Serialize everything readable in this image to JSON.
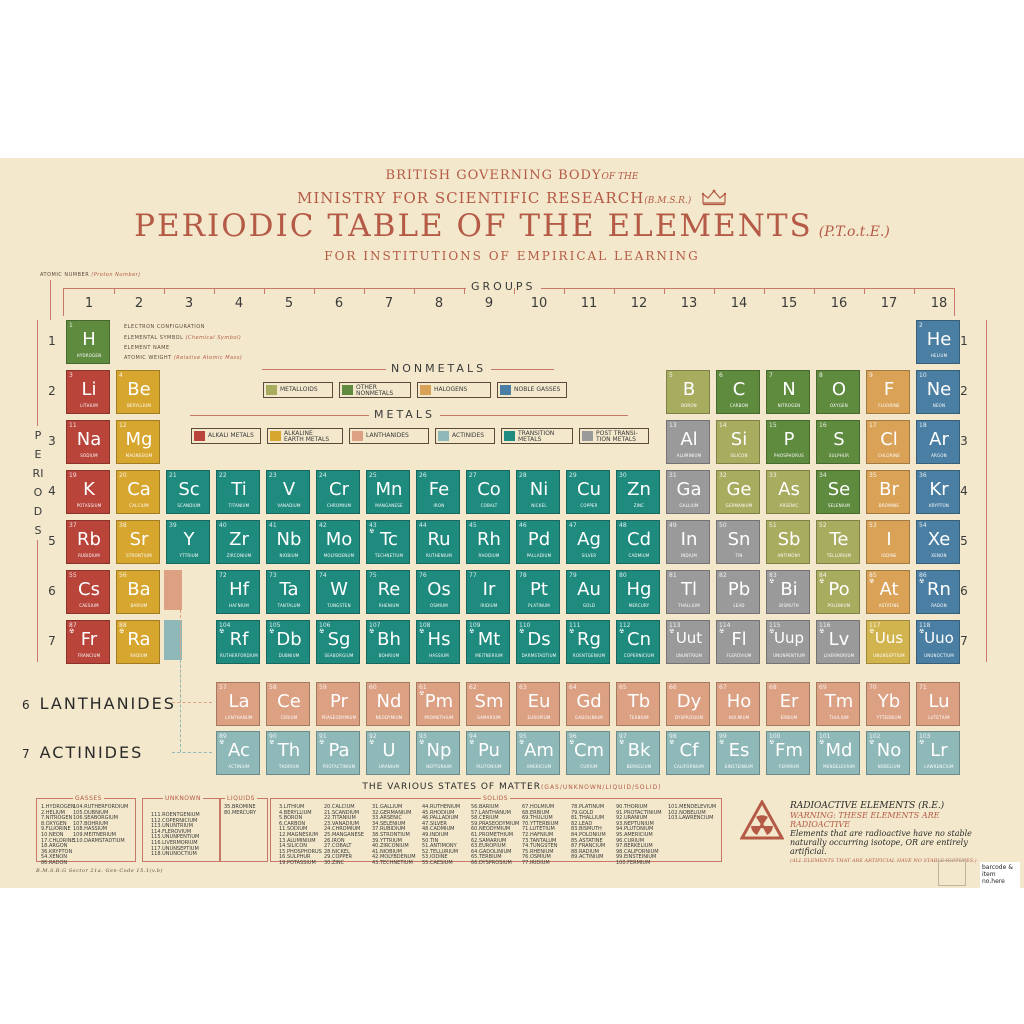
{
  "header": {
    "line1": "BRITISH GOVERNING BODY",
    "line1_small": "OF THE",
    "line2": "MINISTRY FOR SCIENTIFIC RESEARCH",
    "line2_small": "(B.M.S.R.)",
    "title": "PERIODIC TABLE OF THE ELEMENTS",
    "title_small": "(P.T.o.t.E.)",
    "subtitle": "FOR INSTITUTIONS OF EMPIRICAL LEARNING"
  },
  "labels": {
    "atomic_number": "ATOMIC NUMBER",
    "atomic_number_note": "(Proton Number)",
    "electron_configuration": "ELECTRON CONFIGURATION",
    "elemental_symbol": "ELEMENTAL SYMBOL",
    "elemental_symbol_note": "(Chemical Symbol)",
    "element_name": "ELEMENT NAME",
    "atomic_weight": "ATOMIC WEIGHT",
    "atomic_weight_note": "(Relative Atomic Mass)",
    "groups": "GROUPS",
    "periods": "PERIODS",
    "nonmetals": "NONMETALS",
    "metals": "METALS",
    "lanthanides_num": "6",
    "lanthanides": "LANTHANIDES",
    "actinides_num": "7",
    "actinides": "ACTINIDES",
    "states": "THE VARIOUS STATES OF MATTER",
    "states_small": "(GAS/UNKNOWN/LIQUID/SOLID)",
    "footer_code": "B.M.S.R.G Sector 21a. Gen-Code 15.1(v.b)",
    "barcode": "barcode &\nitem no.here"
  },
  "groups": [
    "1",
    "2",
    "3",
    "4",
    "5",
    "6",
    "7",
    "8",
    "9",
    "10",
    "11",
    "12",
    "13",
    "14",
    "15",
    "16",
    "17",
    "18"
  ],
  "periods": [
    "1",
    "2",
    "3",
    "4",
    "5",
    "6",
    "7"
  ],
  "colors": {
    "alkali": "#b8443a",
    "alkaline": "#d7a62f",
    "transition": "#1f8a7e",
    "post": "#9a9a9a",
    "metalloid": "#a8ac5f",
    "nonmetal": "#5f8b3f",
    "halogen": "#d9a257",
    "noble": "#4a7fa3",
    "lanthanide": "#dca083",
    "actinide": "#8fb8b8",
    "unknown": "#d2b44e",
    "accent": "#b45a46"
  },
  "legend_nonmetals": [
    {
      "label": "METALLOIDS",
      "color": "#a8ac5f"
    },
    {
      "label": "OTHER\nNONMETALS",
      "color": "#5f8b3f"
    },
    {
      "label": "HALOGENS",
      "color": "#d9a257"
    },
    {
      "label": "NOBLE GASSES",
      "color": "#4a7fa3"
    }
  ],
  "legend_metals": [
    {
      "label": "ALKALI METALS",
      "color": "#b8443a"
    },
    {
      "label": "ALKALINE\nEARTH METALS",
      "color": "#d7a62f"
    },
    {
      "label": "LANTHANIDES",
      "color": "#dca083"
    },
    {
      "label": "ACTINIDES",
      "color": "#8fb8b8"
    },
    {
      "label": "TRANSITION\nMETALS",
      "color": "#1f8a7e"
    },
    {
      "label": "POST TRANSI-\nTION METALS",
      "color": "#9a9a9a"
    }
  ],
  "elements": [
    {
      "n": 1,
      "s": "H",
      "name": "HYDROGEN",
      "g": 1,
      "p": 1,
      "c": "nonmetal"
    },
    {
      "n": 2,
      "s": "He",
      "name": "HELIUM",
      "g": 18,
      "p": 1,
      "c": "noble"
    },
    {
      "n": 3,
      "s": "Li",
      "name": "LITHIUM",
      "g": 1,
      "p": 2,
      "c": "alkali"
    },
    {
      "n": 4,
      "s": "Be",
      "name": "BERYLLIUM",
      "g": 2,
      "p": 2,
      "c": "alkaline"
    },
    {
      "n": 5,
      "s": "B",
      "name": "BORON",
      "g": 13,
      "p": 2,
      "c": "metalloid"
    },
    {
      "n": 6,
      "s": "C",
      "name": "CARBON",
      "g": 14,
      "p": 2,
      "c": "nonmetal"
    },
    {
      "n": 7,
      "s": "N",
      "name": "NITROGEN",
      "g": 15,
      "p": 2,
      "c": "nonmetal"
    },
    {
      "n": 8,
      "s": "O",
      "name": "OXYGEN",
      "g": 16,
      "p": 2,
      "c": "nonmetal"
    },
    {
      "n": 9,
      "s": "F",
      "name": "FLUORINE",
      "g": 17,
      "p": 2,
      "c": "halogen"
    },
    {
      "n": 10,
      "s": "Ne",
      "name": "NEON",
      "g": 18,
      "p": 2,
      "c": "noble"
    },
    {
      "n": 11,
      "s": "Na",
      "name": "SODIUM",
      "g": 1,
      "p": 3,
      "c": "alkali"
    },
    {
      "n": 12,
      "s": "Mg",
      "name": "MAGNESIUM",
      "g": 2,
      "p": 3,
      "c": "alkaline"
    },
    {
      "n": 13,
      "s": "Al",
      "name": "ALUMINIUM",
      "g": 13,
      "p": 3,
      "c": "post"
    },
    {
      "n": 14,
      "s": "Si",
      "name": "SILICON",
      "g": 14,
      "p": 3,
      "c": "metalloid"
    },
    {
      "n": 15,
      "s": "P",
      "name": "PHOSPHORUS",
      "g": 15,
      "p": 3,
      "c": "nonmetal"
    },
    {
      "n": 16,
      "s": "S",
      "name": "SULPHUR",
      "g": 16,
      "p": 3,
      "c": "nonmetal"
    },
    {
      "n": 17,
      "s": "Cl",
      "name": "CHLORINE",
      "g": 17,
      "p": 3,
      "c": "halogen"
    },
    {
      "n": 18,
      "s": "Ar",
      "name": "ARGON",
      "g": 18,
      "p": 3,
      "c": "noble"
    },
    {
      "n": 19,
      "s": "K",
      "name": "POTASSIUM",
      "g": 1,
      "p": 4,
      "c": "alkali"
    },
    {
      "n": 20,
      "s": "Ca",
      "name": "CALCIUM",
      "g": 2,
      "p": 4,
      "c": "alkaline"
    },
    {
      "n": 21,
      "s": "Sc",
      "name": "SCANDIUM",
      "g": 3,
      "p": 4,
      "c": "transition"
    },
    {
      "n": 22,
      "s": "Ti",
      "name": "TITANIUM",
      "g": 4,
      "p": 4,
      "c": "transition"
    },
    {
      "n": 23,
      "s": "V",
      "name": "VANADIUM",
      "g": 5,
      "p": 4,
      "c": "transition"
    },
    {
      "n": 24,
      "s": "Cr",
      "name": "CHROMIUM",
      "g": 6,
      "p": 4,
      "c": "transition"
    },
    {
      "n": 25,
      "s": "Mn",
      "name": "MANGANESE",
      "g": 7,
      "p": 4,
      "c": "transition"
    },
    {
      "n": 26,
      "s": "Fe",
      "name": "IRON",
      "g": 8,
      "p": 4,
      "c": "transition"
    },
    {
      "n": 27,
      "s": "Co",
      "name": "COBALT",
      "g": 9,
      "p": 4,
      "c": "transition"
    },
    {
      "n": 28,
      "s": "Ni",
      "name": "NICKEL",
      "g": 10,
      "p": 4,
      "c": "transition"
    },
    {
      "n": 29,
      "s": "Cu",
      "name": "COPPER",
      "g": 11,
      "p": 4,
      "c": "transition"
    },
    {
      "n": 30,
      "s": "Zn",
      "name": "ZINC",
      "g": 12,
      "p": 4,
      "c": "transition"
    },
    {
      "n": 31,
      "s": "Ga",
      "name": "GALLIUM",
      "g": 13,
      "p": 4,
      "c": "post"
    },
    {
      "n": 32,
      "s": "Ge",
      "name": "GERMANIUM",
      "g": 14,
      "p": 4,
      "c": "metalloid"
    },
    {
      "n": 33,
      "s": "As",
      "name": "ARSENIC",
      "g": 15,
      "p": 4,
      "c": "metalloid"
    },
    {
      "n": 34,
      "s": "Se",
      "name": "SELENIUM",
      "g": 16,
      "p": 4,
      "c": "nonmetal"
    },
    {
      "n": 35,
      "s": "Br",
      "name": "BROMINE",
      "g": 17,
      "p": 4,
      "c": "halogen"
    },
    {
      "n": 36,
      "s": "Kr",
      "name": "KRYPTON",
      "g": 18,
      "p": 4,
      "c": "noble"
    },
    {
      "n": 37,
      "s": "Rb",
      "name": "RUBIDIUM",
      "g": 1,
      "p": 5,
      "c": "alkali"
    },
    {
      "n": 38,
      "s": "Sr",
      "name": "STRONTIUM",
      "g": 2,
      "p": 5,
      "c": "alkaline"
    },
    {
      "n": 39,
      "s": "Y",
      "name": "YTTRIUM",
      "g": 3,
      "p": 5,
      "c": "transition"
    },
    {
      "n": 40,
      "s": "Zr",
      "name": "ZIRCONIUM",
      "g": 4,
      "p": 5,
      "c": "transition"
    },
    {
      "n": 41,
      "s": "Nb",
      "name": "NIOBIUM",
      "g": 5,
      "p": 5,
      "c": "transition"
    },
    {
      "n": 42,
      "s": "Mo",
      "name": "MOLYBDENUM",
      "g": 6,
      "p": 5,
      "c": "transition"
    },
    {
      "n": 43,
      "s": "Tc",
      "name": "TECHNETIUM",
      "g": 7,
      "p": 5,
      "c": "transition",
      "r": true
    },
    {
      "n": 44,
      "s": "Ru",
      "name": "RUTHENIUM",
      "g": 8,
      "p": 5,
      "c": "transition"
    },
    {
      "n": 45,
      "s": "Rh",
      "name": "RHODIUM",
      "g": 9,
      "p": 5,
      "c": "transition"
    },
    {
      "n": 46,
      "s": "Pd",
      "name": "PALLADIUM",
      "g": 10,
      "p": 5,
      "c": "transition"
    },
    {
      "n": 47,
      "s": "Ag",
      "name": "SILVER",
      "g": 11,
      "p": 5,
      "c": "transition"
    },
    {
      "n": 48,
      "s": "Cd",
      "name": "CADMIUM",
      "g": 12,
      "p": 5,
      "c": "transition"
    },
    {
      "n": 49,
      "s": "In",
      "name": "INDIUM",
      "g": 13,
      "p": 5,
      "c": "post"
    },
    {
      "n": 50,
      "s": "Sn",
      "name": "TIN",
      "g": 14,
      "p": 5,
      "c": "post"
    },
    {
      "n": 51,
      "s": "Sb",
      "name": "ANTIMONY",
      "g": 15,
      "p": 5,
      "c": "metalloid"
    },
    {
      "n": 52,
      "s": "Te",
      "name": "TELLURIUM",
      "g": 16,
      "p": 5,
      "c": "metalloid"
    },
    {
      "n": 53,
      "s": "I",
      "name": "IODINE",
      "g": 17,
      "p": 5,
      "c": "halogen"
    },
    {
      "n": 54,
      "s": "Xe",
      "name": "XENON",
      "g": 18,
      "p": 5,
      "c": "noble"
    },
    {
      "n": 55,
      "s": "Cs",
      "name": "CAESIUM",
      "g": 1,
      "p": 6,
      "c": "alkali"
    },
    {
      "n": 56,
      "s": "Ba",
      "name": "BARIUM",
      "g": 2,
      "p": 6,
      "c": "alkaline"
    },
    {
      "n": 72,
      "s": "Hf",
      "name": "HAFNIUM",
      "g": 4,
      "p": 6,
      "c": "transition"
    },
    {
      "n": 73,
      "s": "Ta",
      "name": "TANTALUM",
      "g": 5,
      "p": 6,
      "c": "transition"
    },
    {
      "n": 74,
      "s": "W",
      "name": "TUNGSTEN",
      "g": 6,
      "p": 6,
      "c": "transition"
    },
    {
      "n": 75,
      "s": "Re",
      "name": "RHENIUM",
      "g": 7,
      "p": 6,
      "c": "transition"
    },
    {
      "n": 76,
      "s": "Os",
      "name": "OSMIUM",
      "g": 8,
      "p": 6,
      "c": "transition"
    },
    {
      "n": 77,
      "s": "Ir",
      "name": "IRIDIUM",
      "g": 9,
      "p": 6,
      "c": "transition"
    },
    {
      "n": 78,
      "s": "Pt",
      "name": "PLATINUM",
      "g": 10,
      "p": 6,
      "c": "transition"
    },
    {
      "n": 79,
      "s": "Au",
      "name": "GOLD",
      "g": 11,
      "p": 6,
      "c": "transition"
    },
    {
      "n": 80,
      "s": "Hg",
      "name": "MERCURY",
      "g": 12,
      "p": 6,
      "c": "transition"
    },
    {
      "n": 81,
      "s": "Tl",
      "name": "THALLIUM",
      "g": 13,
      "p": 6,
      "c": "post"
    },
    {
      "n": 82,
      "s": "Pb",
      "name": "LEAD",
      "g": 14,
      "p": 6,
      "c": "post"
    },
    {
      "n": 83,
      "s": "Bi",
      "name": "BISMUTH",
      "g": 15,
      "p": 6,
      "c": "post",
      "r": true
    },
    {
      "n": 84,
      "s": "Po",
      "name": "POLONIUM",
      "g": 16,
      "p": 6,
      "c": "metalloid",
      "r": true
    },
    {
      "n": 85,
      "s": "At",
      "name": "ASTATINE",
      "g": 17,
      "p": 6,
      "c": "halogen",
      "r": true
    },
    {
      "n": 86,
      "s": "Rn",
      "name": "RADON",
      "g": 18,
      "p": 6,
      "c": "noble",
      "r": true
    },
    {
      "n": 87,
      "s": "Fr",
      "name": "FRANCIUM",
      "g": 1,
      "p": 7,
      "c": "alkali",
      "r": true
    },
    {
      "n": 88,
      "s": "Ra",
      "name": "RADIUM",
      "g": 2,
      "p": 7,
      "c": "alkaline",
      "r": true
    },
    {
      "n": 104,
      "s": "Rf",
      "name": "RUTHERFORDIUM",
      "g": 4,
      "p": 7,
      "c": "transition",
      "r": true
    },
    {
      "n": 105,
      "s": "Db",
      "name": "DUBNIUM",
      "g": 5,
      "p": 7,
      "c": "transition",
      "r": true
    },
    {
      "n": 106,
      "s": "Sg",
      "name": "SEABORGIUM",
      "g": 6,
      "p": 7,
      "c": "transition",
      "r": true
    },
    {
      "n": 107,
      "s": "Bh",
      "name": "BOHRIUM",
      "g": 7,
      "p": 7,
      "c": "transition",
      "r": true
    },
    {
      "n": 108,
      "s": "Hs",
      "name": "HASSIUM",
      "g": 8,
      "p": 7,
      "c": "transition",
      "r": true
    },
    {
      "n": 109,
      "s": "Mt",
      "name": "MEITNERIUM",
      "g": 9,
      "p": 7,
      "c": "transition",
      "r": true
    },
    {
      "n": 110,
      "s": "Ds",
      "name": "DARMSTADTIUM",
      "g": 10,
      "p": 7,
      "c": "transition",
      "r": true
    },
    {
      "n": 111,
      "s": "Rg",
      "name": "ROENTGENIUM",
      "g": 11,
      "p": 7,
      "c": "transition",
      "r": true
    },
    {
      "n": 112,
      "s": "Cn",
      "name": "COPERNICIUM",
      "g": 12,
      "p": 7,
      "c": "transition",
      "r": true
    },
    {
      "n": 113,
      "s": "Uut",
      "name": "UNUNTRIUM",
      "g": 13,
      "p": 7,
      "c": "post",
      "r": true
    },
    {
      "n": 114,
      "s": "Fl",
      "name": "FLEROVIUM",
      "g": 14,
      "p": 7,
      "c": "post",
      "r": true
    },
    {
      "n": 115,
      "s": "Uup",
      "name": "UNUNPENTIUM",
      "g": 15,
      "p": 7,
      "c": "post",
      "r": true
    },
    {
      "n": 116,
      "s": "Lv",
      "name": "LIVERMORIUM",
      "g": 16,
      "p": 7,
      "c": "post",
      "r": true
    },
    {
      "n": 117,
      "s": "Uus",
      "name": "UNUNSEPTIUM",
      "g": 17,
      "p": 7,
      "c": "unknown",
      "r": true
    },
    {
      "n": 118,
      "s": "Uuo",
      "name": "UNUNOCTIUM",
      "g": 18,
      "p": 7,
      "c": "noble",
      "r": true
    },
    {
      "n": 57,
      "s": "La",
      "name": "LANTHANUM",
      "g": 4,
      "p": 9,
      "c": "lanthanide"
    },
    {
      "n": 58,
      "s": "Ce",
      "name": "CERIUM",
      "g": 5,
      "p": 9,
      "c": "lanthanide"
    },
    {
      "n": 59,
      "s": "Pr",
      "name": "PRASEODYMIUM",
      "g": 6,
      "p": 9,
      "c": "lanthanide"
    },
    {
      "n": 60,
      "s": "Nd",
      "name": "NEODYMIUM",
      "g": 7,
      "p": 9,
      "c": "lanthanide"
    },
    {
      "n": 61,
      "s": "Pm",
      "name": "PROMETHIUM",
      "g": 8,
      "p": 9,
      "c": "lanthanide",
      "r": true
    },
    {
      "n": 62,
      "s": "Sm",
      "name": "SAMARIUM",
      "g": 9,
      "p": 9,
      "c": "lanthanide"
    },
    {
      "n": 63,
      "s": "Eu",
      "name": "EUROPIUM",
      "g": 10,
      "p": 9,
      "c": "lanthanide"
    },
    {
      "n": 64,
      "s": "Gd",
      "name": "GADOLINIUM",
      "g": 11,
      "p": 9,
      "c": "lanthanide"
    },
    {
      "n": 65,
      "s": "Tb",
      "name": "TERBIUM",
      "g": 12,
      "p": 9,
      "c": "lanthanide"
    },
    {
      "n": 66,
      "s": "Dy",
      "name": "DYSPROSIUM",
      "g": 13,
      "p": 9,
      "c": "lanthanide"
    },
    {
      "n": 67,
      "s": "Ho",
      "name": "HOLMIUM",
      "g": 14,
      "p": 9,
      "c": "lanthanide"
    },
    {
      "n": 68,
      "s": "Er",
      "name": "ERBIUM",
      "g": 15,
      "p": 9,
      "c": "lanthanide"
    },
    {
      "n": 69,
      "s": "Tm",
      "name": "THULIUM",
      "g": 16,
      "p": 9,
      "c": "lanthanide"
    },
    {
      "n": 70,
      "s": "Yb",
      "name": "YTTERBIUM",
      "g": 17,
      "p": 9,
      "c": "lanthanide"
    },
    {
      "n": 71,
      "s": "Lu",
      "name": "LUTETIUM",
      "g": 18,
      "p": 9,
      "c": "lanthanide"
    },
    {
      "n": 89,
      "s": "Ac",
      "name": "ACTINIUM",
      "g": 4,
      "p": 10,
      "c": "actinide",
      "r": true
    },
    {
      "n": 90,
      "s": "Th",
      "name": "THORIUM",
      "g": 5,
      "p": 10,
      "c": "actinide",
      "r": true
    },
    {
      "n": 91,
      "s": "Pa",
      "name": "PROTACTINIUM",
      "g": 6,
      "p": 10,
      "c": "actinide",
      "r": true
    },
    {
      "n": 92,
      "s": "U",
      "name": "URANIUM",
      "g": 7,
      "p": 10,
      "c": "actinide",
      "r": true
    },
    {
      "n": 93,
      "s": "Np",
      "name": "NEPTUNIUM",
      "g": 8,
      "p": 10,
      "c": "actinide",
      "r": true
    },
    {
      "n": 94,
      "s": "Pu",
      "name": "PLUTONIUM",
      "g": 9,
      "p": 10,
      "c": "actinide",
      "r": true
    },
    {
      "n": 95,
      "s": "Am",
      "name": "AMERICIUM",
      "g": 10,
      "p": 10,
      "c": "actinide",
      "r": true
    },
    {
      "n": 96,
      "s": "Cm",
      "name": "CURIUM",
      "g": 11,
      "p": 10,
      "c": "actinide",
      "r": true
    },
    {
      "n": 97,
      "s": "Bk",
      "name": "BERKELIUM",
      "g": 12,
      "p": 10,
      "c": "actinide",
      "r": true
    },
    {
      "n": 98,
      "s": "Cf",
      "name": "CALIFORNIUM",
      "g": 13,
      "p": 10,
      "c": "actinide",
      "r": true
    },
    {
      "n": 99,
      "s": "Es",
      "name": "EINSTEINIUM",
      "g": 14,
      "p": 10,
      "c": "actinide",
      "r": true
    },
    {
      "n": 100,
      "s": "Fm",
      "name": "FERMIUM",
      "g": 15,
      "p": 10,
      "c": "actinide",
      "r": true
    },
    {
      "n": 101,
      "s": "Md",
      "name": "MENDELEVIUM",
      "g": 16,
      "p": 10,
      "c": "actinide",
      "r": true
    },
    {
      "n": 102,
      "s": "No",
      "name": "NOBELIUM",
      "g": 17,
      "p": 10,
      "c": "actinide",
      "r": true
    },
    {
      "n": 103,
      "s": "Lr",
      "name": "LAWRENCIUM",
      "g": 18,
      "p": 10,
      "c": "actinide",
      "r": true
    }
  ],
  "states": {
    "gasses_title": "GASSES",
    "gasses_col1": "1.HYDROGEN\n2.HELIUM\n7.NITROGEN\n8.OXYGEN\n9.FLUORINE\n10.NEON\n17.CHLORINE\n18.ARGON\n36.KRYPTON\n54.XENON\n86.RADON",
    "gasses_col2": "104.RUTHERFORDIUM\n105.DUBNIUM\n106.SEABORGIUM\n107.BOHRIUM\n108.HASSIUM\n109.MEITNERIUM\n110.DARMSTADTIUM",
    "unknown_title": "UNKNOWN",
    "unknown_col": "111.ROENTGENIUM\n112.COPERNICIUM\n113.UNUNTRIUM\n114.FLEROVIUM\n115.UNUNPENTIUM\n116.LIVERMORIUM\n117.UNUNSEPTIUM\n118.UNUNOCTIUM",
    "liquids_title": "LIQUIDS",
    "liquids_col": "35.BROMINE\n80.MERCURY",
    "solids_title": "SOLIDS",
    "solids_col1": "3.LITHIUM\n4.BERYLLIUM\n5.BORON\n6.CARBON\n11.SODIUM\n12.MAGNESIUM\n13.ALUMINIUM\n14.SILICON\n15.PHOSPHORUS\n16.SULPHUR\n19.POTASSIUM",
    "solids_col2": "20.CALCIUM\n21.SCANDIUM\n22.TITANIUM\n23.VANADIUM\n24.CHROMIUM\n25.MANGANESE\n26.IRON\n27.COBALT\n28.NICKEL\n29.COPPER\n30.ZINC",
    "solids_col3": "31.GALLIUM\n32.GERMANIUM\n33.ARSENIC\n34.SELENIUM\n37.RUBIDIUM\n38.STRONTIUM\n39.YTTRIUM\n40.ZIRCONIUM\n41.NIOBIUM\n42.MOLYBDENUM\n43.TECHNETIUM",
    "solids_col4": "44.RUTHENIUM\n45.RHODIUM\n46.PALLADIUM\n47.SILVER\n48.CADMIUM\n49.INDIUM\n50.TIN\n51.ANTIMONY\n52.TELLURIUM\n53.IODINE\n55.CAESIUM",
    "solids_col5": "56.BARIUM\n57.LANTHANUM\n58.CERIUM\n59.PRASEODYMIUM\n60.NEODYMIUM\n61.PROMETHIUM\n62.SAMARIUM\n63.EUROPIUM\n64.GADOLINIUM\n65.TERBIUM\n66.DYSPROSIUM",
    "solids_col6": "67.HOLMIUM\n68.ERBIUM\n69.THULIUM\n70.YTTERBIUM\n71.LUTETIUM\n72.HAFNIUM\n73.TANTALUM\n74.TUNGSTEN\n75.RHENIUM\n76.OSMIUM\n77.IRIDIUM",
    "solids_col7": "78.PLATINUM\n79.GOLD\n81.THALLIUM\n82.LEAD\n83.BISMUTH\n84.POLONIUM\n85.ASTATINE\n87.FRANCIUM\n88.RADIUM\n89.ACTINIUM",
    "solids_col8": "90.THORIUM\n91.PROTACTINIUM\n92.URANIUM\n93.NEPTUNIUM\n94.PLUTONIUM\n95.AMERICIUM\n96.CURIUM\n97.BERKELIUM\n98.CALIFORNIUM\n99.EINSTEINIUM\n100.FERMIUM",
    "solids_col9": "101.MENDELEVIUM\n102.NOBELIUM\n103.LAWRENCIUM"
  },
  "radioactive": {
    "title": "RADIOACTIVE ELEMENTS (R.E.)",
    "warning": "WARNING: THESE ELEMENTS ARE RADIOACTIVE",
    "body": "Elements that are radioactive have no stable naturally occurring isotope, OR are entirely artificial.",
    "note": "(ALL ELEMENTS THAT ARE ARTIFICIAL HAVE NO STABLE ISOTOPES.)"
  }
}
